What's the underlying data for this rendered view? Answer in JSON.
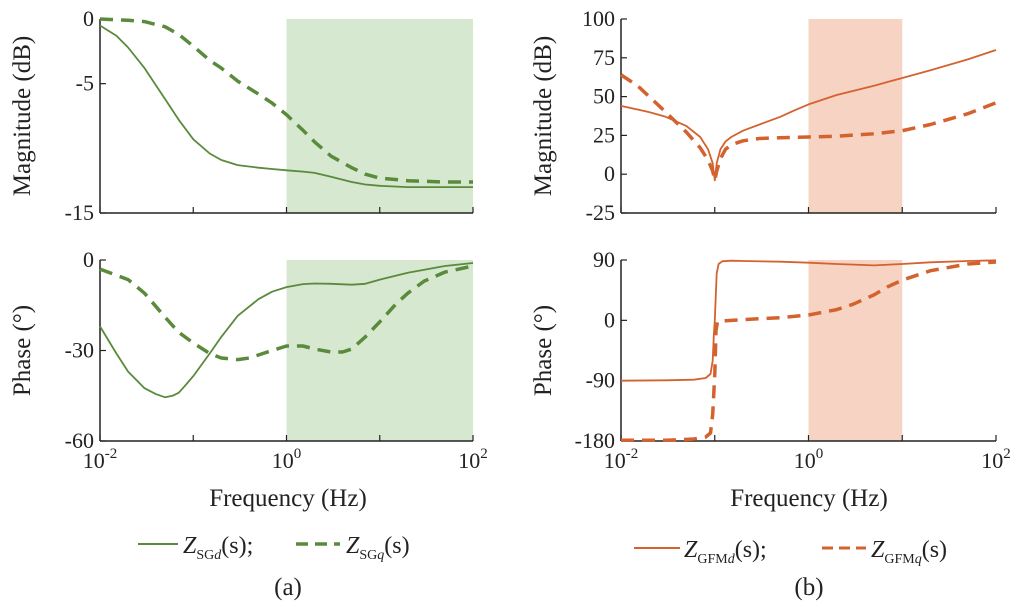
{
  "colors": {
    "sg": "#5a8a3c",
    "gfm": "#d4622f",
    "sg_band": "#d6e8d0",
    "gfm_band": "#f6d3c3",
    "axis": "#222222"
  },
  "panels": {
    "a": {
      "caption": "(a)",
      "xlabel": "Frequency (Hz)",
      "legend": {
        "d": {
          "main": "Z",
          "sub": "SG",
          "sub_italic": "d",
          "suffix": "(s)",
          "sep": ";"
        },
        "q": {
          "main": "Z",
          "sub": "SG",
          "sub_italic": "q",
          "suffix": "(s)"
        }
      }
    },
    "b": {
      "caption": "(b)",
      "xlabel": "Frequency (Hz)",
      "legend": {
        "d": {
          "main": "Z",
          "sub": "GFM",
          "sub_italic": "d",
          "suffix": "(s)",
          "sep": ";"
        },
        "q": {
          "main": "Z",
          "sub": "GFM",
          "sub_italic": "q",
          "suffix": "(s)"
        }
      }
    }
  },
  "chart_data": [
    {
      "id": "a-mag",
      "type": "line",
      "title": "",
      "xlabel": "",
      "ylabel": "Magnitude (dB)",
      "xscale": "log",
      "xlim": [
        0.01,
        100
      ],
      "ylim": [
        -15,
        0
      ],
      "yticks": [
        0,
        -5,
        -15
      ],
      "ytick_labels": [
        "0",
        "-5",
        "-15"
      ],
      "shade": [
        1,
        100
      ],
      "series": [
        {
          "name": "Z_SGd(s)",
          "style": "solid",
          "x": [
            0.01,
            0.015,
            0.02,
            0.03,
            0.05,
            0.07,
            0.1,
            0.15,
            0.2,
            0.3,
            0.5,
            0.7,
            1,
            1.5,
            2,
            3,
            5,
            7,
            10,
            20,
            50,
            100
          ],
          "y": [
            -0.5,
            -1.3,
            -2.2,
            -3.8,
            -6.2,
            -7.8,
            -9.3,
            -10.4,
            -10.9,
            -11.3,
            -11.5,
            -11.6,
            -11.7,
            -11.8,
            -11.9,
            -12.2,
            -12.6,
            -12.8,
            -12.9,
            -13.0,
            -13.0,
            -13.0
          ]
        },
        {
          "name": "Z_SGq(s)",
          "style": "dashed",
          "x": [
            0.01,
            0.02,
            0.03,
            0.05,
            0.07,
            0.1,
            0.15,
            0.2,
            0.3,
            0.5,
            0.7,
            1,
            1.5,
            2,
            3,
            5,
            7,
            10,
            20,
            50,
            100
          ],
          "y": [
            0.0,
            -0.1,
            -0.2,
            -0.6,
            -1.2,
            -2.1,
            -3.2,
            -3.8,
            -4.8,
            -5.8,
            -6.5,
            -7.4,
            -8.6,
            -9.5,
            -10.6,
            -11.5,
            -12.0,
            -12.3,
            -12.5,
            -12.6,
            -12.6
          ]
        }
      ]
    },
    {
      "id": "a-phase",
      "type": "line",
      "title": "",
      "xlabel": "Frequency (Hz)",
      "ylabel": "Phase (°)",
      "xscale": "log",
      "xlim": [
        0.01,
        100
      ],
      "ylim": [
        -60,
        0
      ],
      "yticks": [
        0,
        -30,
        -60
      ],
      "ytick_labels": [
        "0",
        "-30",
        "-60"
      ],
      "xticks": [
        0.01,
        1,
        100
      ],
      "xtick_base": "10",
      "xtick_exps": [
        "-2",
        "0",
        "2"
      ],
      "shade": [
        1,
        100
      ],
      "series": [
        {
          "name": "Z_SGd(s)",
          "style": "solid",
          "x": [
            0.01,
            0.015,
            0.02,
            0.03,
            0.04,
            0.05,
            0.06,
            0.07,
            0.08,
            0.1,
            0.15,
            0.2,
            0.3,
            0.5,
            0.7,
            1,
            1.5,
            2,
            3,
            5,
            7,
            10,
            20,
            50,
            100
          ],
          "y": [
            -22,
            -31,
            -37,
            -42.5,
            -44.5,
            -45.5,
            -45,
            -44,
            -42,
            -38.5,
            -31,
            -25.5,
            -18.5,
            -13,
            -10.5,
            -9,
            -8,
            -7.8,
            -7.9,
            -8.2,
            -7.9,
            -6.5,
            -4.2,
            -2,
            -1
          ]
        },
        {
          "name": "Z_SGq(s)",
          "style": "dashed",
          "x": [
            0.01,
            0.02,
            0.03,
            0.05,
            0.07,
            0.1,
            0.15,
            0.2,
            0.3,
            0.4,
            0.5,
            0.7,
            1,
            1.5,
            2,
            3,
            4,
            5,
            7,
            10,
            15,
            20,
            30,
            50,
            100
          ],
          "y": [
            -3,
            -6.5,
            -11,
            -19,
            -24,
            -27.5,
            -31,
            -32.5,
            -33,
            -32.5,
            -31.5,
            -30,
            -28.5,
            -28.5,
            -29.5,
            -30.5,
            -30.5,
            -29.5,
            -25.5,
            -20.5,
            -14.5,
            -11,
            -7,
            -4,
            -2
          ]
        }
      ]
    },
    {
      "id": "b-mag",
      "type": "line",
      "title": "",
      "xlabel": "",
      "ylabel": "Magnitude (dB)",
      "xscale": "log",
      "xlim": [
        0.01,
        100
      ],
      "ylim": [
        -25,
        100
      ],
      "yticks": [
        100,
        75,
        50,
        25,
        0,
        -25
      ],
      "ytick_labels": [
        "100",
        "75",
        "50",
        "25",
        "0",
        "-25"
      ],
      "shade": [
        1,
        10
      ],
      "series": [
        {
          "name": "Z_GFMd(s)",
          "style": "solid",
          "x": [
            0.01,
            0.02,
            0.03,
            0.05,
            0.07,
            0.085,
            0.095,
            0.1,
            0.105,
            0.115,
            0.13,
            0.15,
            0.2,
            0.3,
            0.5,
            0.7,
            1,
            2,
            5,
            10,
            20,
            50,
            100
          ],
          "y": [
            44,
            40,
            37,
            31,
            24,
            16,
            7,
            -4,
            7,
            16,
            21,
            24,
            28,
            32,
            37,
            41,
            45,
            51,
            57,
            62,
            67,
            74,
            80
          ]
        },
        {
          "name": "Z_GFMq(s)",
          "style": "dashed",
          "x": [
            0.01,
            0.015,
            0.02,
            0.03,
            0.05,
            0.07,
            0.085,
            0.095,
            0.1,
            0.105,
            0.115,
            0.13,
            0.15,
            0.2,
            0.3,
            0.5,
            1,
            2,
            5,
            10,
            20,
            50,
            100
          ],
          "y": [
            64,
            57,
            50,
            40,
            27,
            17,
            9,
            2,
            -4,
            2,
            10,
            16,
            19,
            21.5,
            23,
            23.5,
            24,
            24.5,
            26,
            28,
            32,
            39,
            46
          ]
        }
      ]
    },
    {
      "id": "b-phase",
      "type": "line",
      "title": "",
      "xlabel": "Frequency (Hz)",
      "ylabel": "Phase (°)",
      "xscale": "log",
      "xlim": [
        0.01,
        100
      ],
      "ylim": [
        -180,
        90
      ],
      "yticks": [
        90,
        0,
        -90,
        -180
      ],
      "ytick_labels": [
        "90",
        "0",
        "-90",
        "-180"
      ],
      "xticks": [
        0.01,
        1,
        100
      ],
      "xtick_base": "10",
      "xtick_exps": [
        "-2",
        "0",
        "2"
      ],
      "shade": [
        1,
        10
      ],
      "series": [
        {
          "name": "Z_GFMd(s)",
          "style": "solid",
          "x": [
            0.01,
            0.03,
            0.06,
            0.08,
            0.09,
            0.095,
            0.098,
            0.1,
            0.102,
            0.105,
            0.11,
            0.12,
            0.15,
            0.2,
            0.5,
            1,
            2,
            5,
            10,
            20,
            50,
            100
          ],
          "y": [
            -90,
            -89.5,
            -88.5,
            -86,
            -80,
            -60,
            -20,
            0,
            30,
            70,
            84,
            88,
            89,
            88.5,
            87.5,
            86,
            84,
            82,
            84,
            86.5,
            88.5,
            89.5
          ]
        },
        {
          "name": "Z_GFMq(s)",
          "style": "dashed",
          "x": [
            0.01,
            0.03,
            0.06,
            0.08,
            0.09,
            0.095,
            0.1,
            0.103,
            0.107,
            0.115,
            0.13,
            0.2,
            0.3,
            0.5,
            1,
            2,
            3,
            5,
            7,
            10,
            20,
            50,
            100
          ],
          "y": [
            -179,
            -179,
            -177,
            -174,
            -168,
            -140,
            -80,
            -15,
            -2,
            -1,
            -0.5,
            1,
            2.5,
            4,
            8,
            16,
            24,
            38,
            50,
            60,
            74,
            84,
            87
          ]
        }
      ]
    }
  ]
}
